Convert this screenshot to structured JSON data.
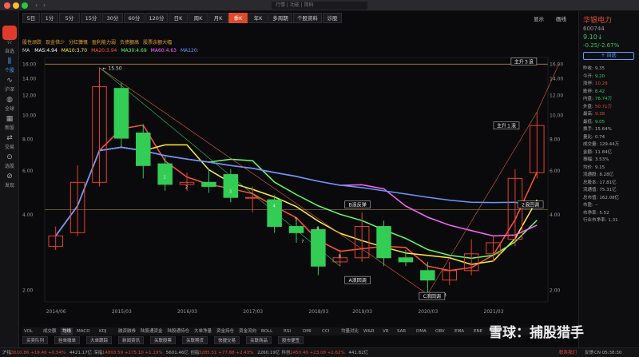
{
  "titlebar": {
    "search_placeholder": "行情 | 功能 | 简码"
  },
  "sidebar": {
    "items": [
      {
        "label": "自选",
        "icon": "star-icon"
      },
      {
        "label": "个股",
        "icon": "candlestick-icon"
      },
      {
        "label": "沪深",
        "icon": "chart-icon"
      },
      {
        "label": "全球",
        "icon": "globe-icon"
      },
      {
        "label": "新股",
        "icon": "calendar-icon"
      },
      {
        "label": "交易",
        "icon": "trade-icon"
      },
      {
        "label": "选股",
        "icon": "filter-icon"
      },
      {
        "label": "发现",
        "icon": "compass-icon"
      }
    ]
  },
  "toolbar": {
    "periods": [
      "5日",
      "1分",
      "5分",
      "15分",
      "30分",
      "60分",
      "120分",
      "日K",
      "周K",
      "月K",
      "季K",
      "年K",
      "多周期",
      "个股资料",
      "诊股"
    ],
    "active": "季K",
    "right": [
      "显示",
      "画线"
    ]
  },
  "indicators": {
    "tags": [
      "股性顽跌",
      "现金惜少",
      "分红慷慨",
      "盈利能力弱",
      "负债额高",
      "股票余额大幅"
    ],
    "ma_label": "MA",
    "ma": [
      {
        "label": "MA5:4.94",
        "color": "#ffffff"
      },
      {
        "label": "MA10:3.70",
        "color": "#ffee33"
      },
      {
        "label": "MA20:3.94",
        "color": "#ff5533"
      },
      {
        "label": "MA30:4.69",
        "color": "#66ff66"
      },
      {
        "label": "MA60:4.63",
        "color": "#ff66ff"
      },
      {
        "label": "MA120:",
        "color": "#6699ff"
      }
    ]
  },
  "chart_data": {
    "type": "candlestick",
    "y_scale": "log",
    "ylim": [
      1.8,
      17
    ],
    "y_ticks": [
      "16.00",
      "14.00",
      "12.00",
      "10.00",
      "8.00",
      "6.00",
      "4.00",
      "2.00"
    ],
    "x_ticks": [
      "2014/06",
      "2015/03",
      "2016/03",
      "2017/03",
      "2018/03",
      "2019/03",
      "2020/03",
      "2021/03"
    ],
    "max_label": "15.50",
    "min_label": "1.93",
    "candles": [
      {
        "o": 3.0,
        "c": 3.3,
        "h": 3.6,
        "l": 2.9
      },
      {
        "o": 3.4,
        "c": 5.4,
        "h": 6.3,
        "l": 3.3
      },
      {
        "o": 5.4,
        "c": 13.0,
        "h": 15.5,
        "l": 5.2
      },
      {
        "o": 12.8,
        "c": 8.1,
        "h": 13.5,
        "l": 7.5
      },
      {
        "o": 8.5,
        "c": 6.3,
        "h": 9.2,
        "l": 5.6
      },
      {
        "o": 6.4,
        "c": 5.3,
        "h": 6.8,
        "l": 5.0
      },
      {
        "o": 5.3,
        "c": 5.4,
        "h": 5.9,
        "l": 5.0
      },
      {
        "o": 5.4,
        "c": 5.2,
        "h": 6.1,
        "l": 4.9
      },
      {
        "o": 5.8,
        "c": 4.7,
        "h": 6.1,
        "l": 4.5
      },
      {
        "o": 4.7,
        "c": 4.7,
        "h": 5.2,
        "l": 4.1
      },
      {
        "o": 4.6,
        "c": 3.6,
        "h": 4.8,
        "l": 3.4
      },
      {
        "o": 3.6,
        "c": 3.4,
        "h": 3.8,
        "l": 3.1
      },
      {
        "o": 3.5,
        "c": 2.5,
        "h": 3.6,
        "l": 2.3
      },
      {
        "o": 2.6,
        "c": 2.7,
        "h": 2.9,
        "l": 2.5
      },
      {
        "o": 2.7,
        "c": 3.6,
        "h": 4.1,
        "l": 2.6
      },
      {
        "o": 3.6,
        "c": 2.7,
        "h": 3.8,
        "l": 2.5
      },
      {
        "o": 2.7,
        "c": 2.6,
        "h": 2.9,
        "l": 2.5
      },
      {
        "o": 2.4,
        "c": 2.2,
        "h": 2.6,
        "l": 1.93
      },
      {
        "o": 2.2,
        "c": 2.4,
        "h": 2.6,
        "l": 2.1
      },
      {
        "o": 2.4,
        "c": 2.8,
        "h": 3.2,
        "l": 2.3
      },
      {
        "o": 2.8,
        "c": 3.1,
        "h": 3.3,
        "l": 2.6
      },
      {
        "o": 3.2,
        "c": 5.6,
        "h": 6.1,
        "l": 3.0
      },
      {
        "o": 5.9,
        "c": 9.1,
        "h": 10.3,
        "l": 5.6
      }
    ],
    "annotations": [
      {
        "text": "主升３浪"
      },
      {
        "text": "主升１浪"
      },
      {
        "text": "B浪反弹"
      },
      {
        "text": "2浪回调"
      },
      {
        "text": "A浪回调"
      },
      {
        "text": "C浪回调"
      }
    ],
    "candle_numbers": [
      "1",
      "2",
      "3",
      "4",
      "5",
      "6",
      "7",
      "8",
      "9"
    ]
  },
  "stock": {
    "name": "华银电力",
    "code": "600744",
    "price": "9.10↓",
    "change": "-0.25/-2.67%",
    "add_button": "+ 自选",
    "quote": [
      {
        "k": "昨收:",
        "v": "9.35",
        "c": "#aaa"
      },
      {
        "k": "今开:",
        "v": "9.20",
        "c": "#33cc66"
      },
      {
        "k": "涨停:",
        "v": "10.29",
        "c": "#e04a2a"
      },
      {
        "k": "跌停:",
        "v": "8.42",
        "c": "#33cc66"
      },
      {
        "k": "内盘:",
        "v": "76.74万",
        "c": "#33cc66"
      },
      {
        "k": "外盘:",
        "v": "50.71万",
        "c": "#e04a2a"
      },
      {
        "k": "最高:",
        "v": "9.38",
        "c": "#e04a2a"
      },
      {
        "k": "最低:",
        "v": "9.05",
        "c": "#33cc66"
      },
      {
        "k": "换手:",
        "v": "15.64%",
        "c": "#aaa"
      },
      {
        "k": "量比:",
        "v": "0.74",
        "c": "#aaa"
      },
      {
        "k": "成交量:",
        "v": "129.44万",
        "c": "#aaa"
      },
      {
        "k": "金额:",
        "v": "11.84亿",
        "c": "#aaa"
      },
      {
        "k": "振幅:",
        "v": "3.53%",
        "c": "#aaa"
      },
      {
        "k": "均价:",
        "v": "9.15",
        "c": "#aaa"
      },
      {
        "k": "流通股:",
        "v": "8.28亿",
        "c": "#aaa"
      },
      {
        "k": "总股本:",
        "v": "17.81亿",
        "c": "#aaa"
      },
      {
        "k": "流通值:",
        "v": "75.31亿",
        "c": "#aaa"
      },
      {
        "k": "总市值:",
        "v": "162.08亿",
        "c": "#aaa"
      },
      {
        "k": "市盈:",
        "v": "--",
        "c": "#aaa"
      },
      {
        "k": "市净率:",
        "v": "5.52",
        "c": "#aaa"
      },
      {
        "k": "行业市净率:",
        "v": "1.31",
        "c": "#aaa"
      }
    ]
  },
  "bottom_tabs": [
    "VOL",
    "成交额",
    "均线",
    "MACD",
    "KDJ",
    "融资融券",
    "陆股通资金",
    "陆股通持仓",
    "大单净量",
    "资金持仓",
    "资金流向",
    "BOLL",
    "RSI",
    "DMI",
    "CCI",
    "均量对比",
    "W&R",
    "VR",
    "SAR",
    "DMA",
    "OBV",
    "EMA",
    "ENE",
    "SBI"
  ],
  "bottom_tabs_active": "均线",
  "sub_tabs": [
    "买卖队列",
    "挂单撤单",
    "大单跟踪",
    "新闻资讯",
    "关联股票",
    "关联期货",
    "快捷交易",
    "关联商品",
    "股市便签"
  ],
  "statusbar": [
    {
      "label": "沪指",
      "c": "#aaa"
    },
    {
      "label": "3610.86 +19.46 +0.54%",
      "c": "#e04a2a"
    },
    {
      "label": "4421.17亿",
      "c": "#aaa"
    },
    {
      "label": "深指",
      "c": "#aaa"
    },
    {
      "label": "14893.59 +175.10 +1.19%",
      "c": "#e04a2a"
    },
    {
      "label": "5601.46亿",
      "c": "#aaa"
    },
    {
      "label": "创指",
      "c": "#aaa"
    },
    {
      "label": "3285.51 +77.88 +2.43%",
      "c": "#e04a2a"
    },
    {
      "label": "2260.19亿",
      "c": "#aaa"
    },
    {
      "label": "科创",
      "c": "#aaa"
    },
    {
      "label": "1450.40 +23.08 +1.62%",
      "c": "#e04a2a"
    },
    {
      "label": "441.82亿",
      "c": "#aaa"
    }
  ],
  "statusbar_right": [
    "联系我们",
    "反馈",
    "CN 05:38:30"
  ],
  "watermark": "雪球：捕股猎手"
}
